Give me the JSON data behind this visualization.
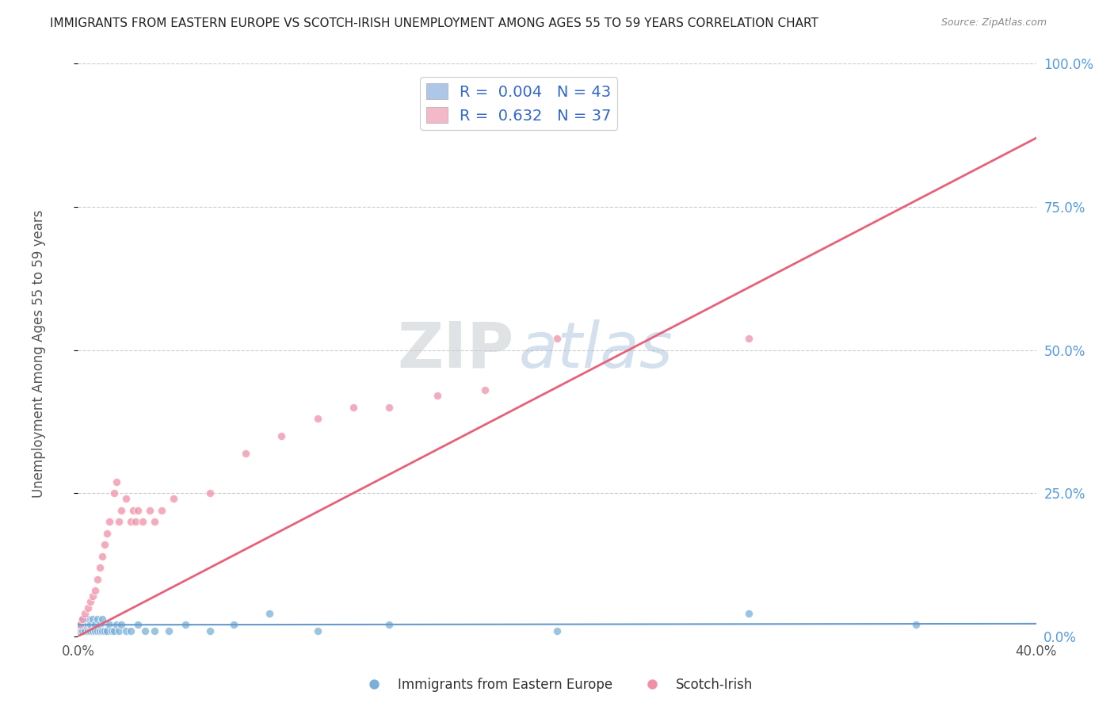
{
  "title": "IMMIGRANTS FROM EASTERN EUROPE VS SCOTCH-IRISH UNEMPLOYMENT AMONG AGES 55 TO 59 YEARS CORRELATION CHART",
  "source": "Source: ZipAtlas.com",
  "ylabel": "Unemployment Among Ages 55 to 59 years",
  "legend1_label": "R =  0.004   N = 43",
  "legend2_label": "R =  0.632   N = 37",
  "legend1_color": "#aec6e8",
  "legend2_color": "#f4b8c8",
  "scatter_blue_color": "#7ab0d8",
  "scatter_pink_color": "#f090a8",
  "trendline_blue_color": "#6699cc",
  "trendline_pink_color": "#e8607a",
  "watermark_zip": "ZIP",
  "watermark_atlas": "atlas",
  "background_color": "#ffffff",
  "gridline_color": "#cccccc",
  "blue_x": [
    0.001,
    0.001,
    0.002,
    0.002,
    0.003,
    0.003,
    0.004,
    0.004,
    0.005,
    0.005,
    0.006,
    0.006,
    0.007,
    0.007,
    0.008,
    0.008,
    0.009,
    0.009,
    0.01,
    0.01,
    0.011,
    0.012,
    0.013,
    0.014,
    0.015,
    0.016,
    0.017,
    0.018,
    0.02,
    0.022,
    0.025,
    0.028,
    0.032,
    0.038,
    0.045,
    0.055,
    0.065,
    0.08,
    0.1,
    0.13,
    0.2,
    0.28,
    0.35
  ],
  "blue_y": [
    0.01,
    0.02,
    0.01,
    0.03,
    0.01,
    0.02,
    0.01,
    0.03,
    0.01,
    0.02,
    0.01,
    0.03,
    0.01,
    0.02,
    0.01,
    0.03,
    0.01,
    0.02,
    0.01,
    0.03,
    0.01,
    0.01,
    0.02,
    0.01,
    0.01,
    0.02,
    0.01,
    0.02,
    0.01,
    0.01,
    0.02,
    0.01,
    0.01,
    0.01,
    0.02,
    0.01,
    0.02,
    0.04,
    0.01,
    0.02,
    0.01,
    0.04,
    0.02
  ],
  "pink_x": [
    0.001,
    0.002,
    0.003,
    0.004,
    0.005,
    0.006,
    0.007,
    0.008,
    0.009,
    0.01,
    0.011,
    0.012,
    0.013,
    0.015,
    0.016,
    0.017,
    0.018,
    0.02,
    0.022,
    0.023,
    0.024,
    0.025,
    0.027,
    0.03,
    0.032,
    0.035,
    0.04,
    0.055,
    0.07,
    0.085,
    0.1,
    0.115,
    0.13,
    0.15,
    0.17,
    0.2,
    0.28
  ],
  "pink_y": [
    0.02,
    0.03,
    0.04,
    0.05,
    0.06,
    0.07,
    0.08,
    0.1,
    0.12,
    0.14,
    0.16,
    0.18,
    0.2,
    0.25,
    0.27,
    0.2,
    0.22,
    0.24,
    0.2,
    0.22,
    0.2,
    0.22,
    0.2,
    0.22,
    0.2,
    0.22,
    0.24,
    0.25,
    0.32,
    0.35,
    0.38,
    0.4,
    0.4,
    0.42,
    0.43,
    0.52,
    0.52
  ],
  "blue_trend_x": [
    0.0,
    0.4
  ],
  "blue_trend_y": [
    0.02,
    0.022
  ],
  "pink_trend_x": [
    0.0,
    0.4
  ],
  "pink_trend_y": [
    0.0,
    0.87
  ],
  "xlim": [
    0.0,
    0.4
  ],
  "ylim": [
    0.0,
    1.0
  ],
  "xtick_left_label": "0.0%",
  "xtick_right_label": "40.0%",
  "ytick_vals": [
    0.0,
    0.25,
    0.5,
    0.75,
    1.0
  ],
  "ytick_labels": [
    "0.0%",
    "25.0%",
    "50.0%",
    "75.0%",
    "100.0%"
  ]
}
